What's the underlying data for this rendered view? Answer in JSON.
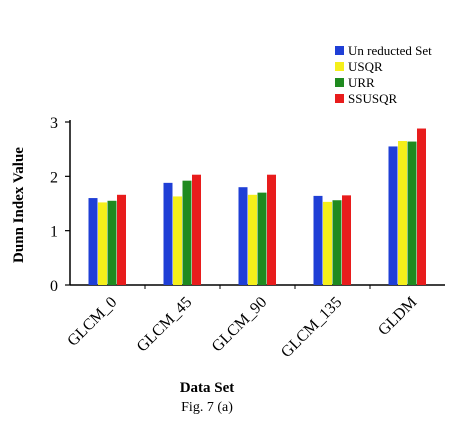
{
  "chart_data": {
    "type": "bar",
    "categories": [
      "GLCM_0",
      "GLCM_45",
      "GLCM_90",
      "GLCM_135",
      "GLDM"
    ],
    "series": [
      {
        "name": "Un reducted Set",
        "color": "#1f3fd6",
        "values": [
          1.6,
          1.88,
          1.8,
          1.64,
          2.55
        ]
      },
      {
        "name": "USQR",
        "color": "#f5ef1a",
        "values": [
          1.52,
          1.63,
          1.66,
          1.53,
          2.65
        ]
      },
      {
        "name": "URR",
        "color": "#1f8a1f",
        "values": [
          1.55,
          1.92,
          1.7,
          1.56,
          2.64
        ]
      },
      {
        "name": "SSUSQR",
        "color": "#e81c1c",
        "values": [
          1.66,
          2.03,
          2.03,
          1.65,
          2.88
        ]
      }
    ],
    "ylim": [
      0,
      3
    ],
    "yticks": [
      0,
      1,
      2,
      3
    ],
    "xlabel": "Data Set",
    "ylabel": "Dunn Index Value",
    "caption": "Fig. 7 (a)",
    "legend_position": "top-right",
    "grid": false
  }
}
